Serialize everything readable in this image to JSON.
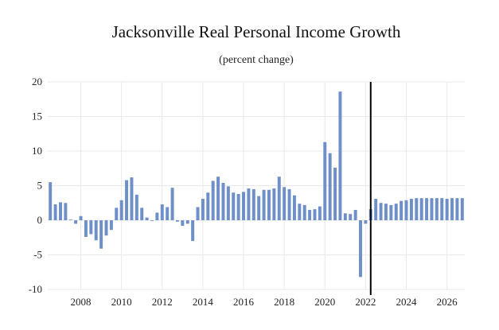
{
  "chart_data": {
    "type": "bar",
    "title": "Jacksonville Real Personal Income Growth",
    "subtitle": "(percent change)",
    "xlabel": "",
    "ylabel": "",
    "ylim": [
      -10,
      20
    ],
    "yticks": [
      20,
      15,
      10,
      5,
      0,
      -5,
      -10
    ],
    "xtick_labels": [
      "2008",
      "2010",
      "2012",
      "2014",
      "2016",
      "2018",
      "2020",
      "2022",
      "2024",
      "2026"
    ],
    "first_quarter": "2006Q3",
    "vertical_marker": "2022Q2",
    "grid": true,
    "legend": "none",
    "color": "#6f8fc9",
    "values": [
      5.5,
      2.3,
      2.6,
      2.5,
      0.1,
      -0.5,
      0.6,
      -2.4,
      -2.0,
      -2.9,
      -4.1,
      -2.2,
      -1.4,
      1.8,
      2.9,
      5.8,
      6.2,
      3.7,
      1.8,
      0.4,
      -0.1,
      1.1,
      2.3,
      1.9,
      4.7,
      -0.2,
      -0.8,
      -0.5,
      -3.0,
      1.9,
      3.1,
      4.0,
      5.7,
      6.3,
      5.4,
      4.9,
      4.0,
      3.8,
      4.1,
      4.6,
      4.5,
      3.5,
      4.4,
      4.4,
      4.6,
      6.3,
      4.8,
      4.5,
      3.6,
      2.4,
      2.2,
      1.5,
      1.6,
      2.0,
      11.3,
      9.7,
      7.6,
      18.6,
      1.0,
      0.9,
      1.5,
      -8.2,
      -0.5,
      1.6,
      3.1,
      2.5,
      2.4,
      2.2,
      2.4,
      2.8,
      2.9,
      3.1,
      3.2,
      3.2,
      3.2,
      3.2,
      3.2,
      3.2,
      3.1,
      3.2,
      3.2,
      3.2
    ]
  }
}
